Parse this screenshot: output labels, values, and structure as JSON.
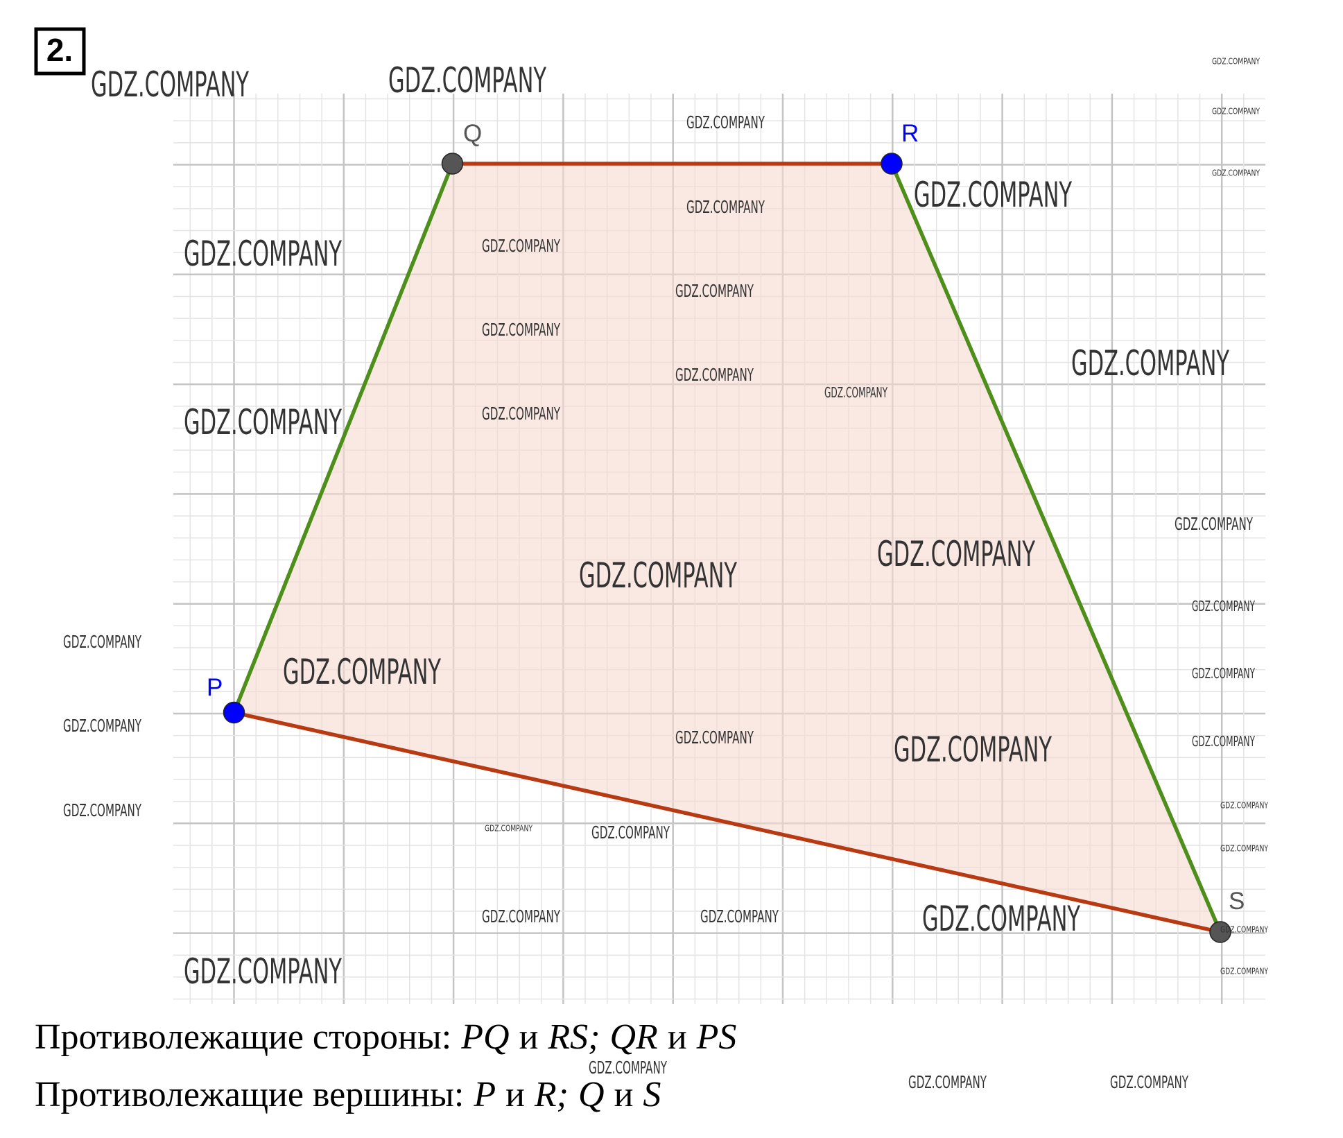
{
  "problem_number": "2.",
  "points": [
    {
      "label": "P"
    },
    {
      "label": "Q"
    },
    {
      "label": "R"
    },
    {
      "label": "S"
    }
  ],
  "answer": [
    {
      "label": "Противолежащие стороны:",
      "items": [
        {
          "text": "PQ",
          "math": true
        },
        {
          "text": "и"
        },
        {
          "text": "RS;",
          "math": true
        },
        {
          "text": "QR",
          "math": true
        },
        {
          "text": "и"
        },
        {
          "text": "PS",
          "math": true
        }
      ]
    },
    {
      "label": "Противолежащие вершины:",
      "items": [
        {
          "text": "P",
          "math": true
        },
        {
          "text": "и"
        },
        {
          "text": "R;",
          "math": true
        },
        {
          "text": "Q",
          "math": true
        },
        {
          "text": "и"
        },
        {
          "text": "S",
          "math": true
        }
      ]
    }
  ],
  "watermarks": [
    "GDZ.COMPANY",
    "GDZ.COMPANY",
    "GDZ.COMPANY",
    "GDZ.COMPANY",
    "GDZ.COMPANY",
    "GDZ.COMPANY",
    "GDZ.COMPANY",
    "GDZ.COMPANY",
    "GDZ.COMPANY",
    "GDZ.COMPANY",
    "GDZ.COMPANY",
    "GDZ.COMPANY",
    "GDZ.COMPANY",
    "GDZ.COMPANY",
    "GDZ.COMPANY",
    "GDZ.COMPANY",
    "GDZ.COMPANY",
    "GDZ.COMPANY",
    "GDZ.COMPANY",
    "GDZ.COMPANY",
    "GDZ.COMPANY",
    "GDZ.COMPANY",
    "GDZ.COMPANY",
    "GDZ.COMPANY",
    "GDZ.COMPANY",
    "GDZ.COMPANY",
    "GDZ.COMPANY",
    "GDZ.COMPANY",
    "GDZ.COMPANY",
    "GDZ.COMPANY",
    "GDZ.COMPANY",
    "GDZ.COMPANY",
    "GDZ.COMPANY",
    "GDZ.COMPANY",
    "GDZ.COMPANY",
    "GDZ.COMPANY",
    "GDZ.COMPANY",
    "GDZ.COMPANY",
    "GDZ.COMPANY",
    "GDZ.COMPANY",
    "GDZ.COMPANY",
    "GDZ.COMPANY"
  ]
}
